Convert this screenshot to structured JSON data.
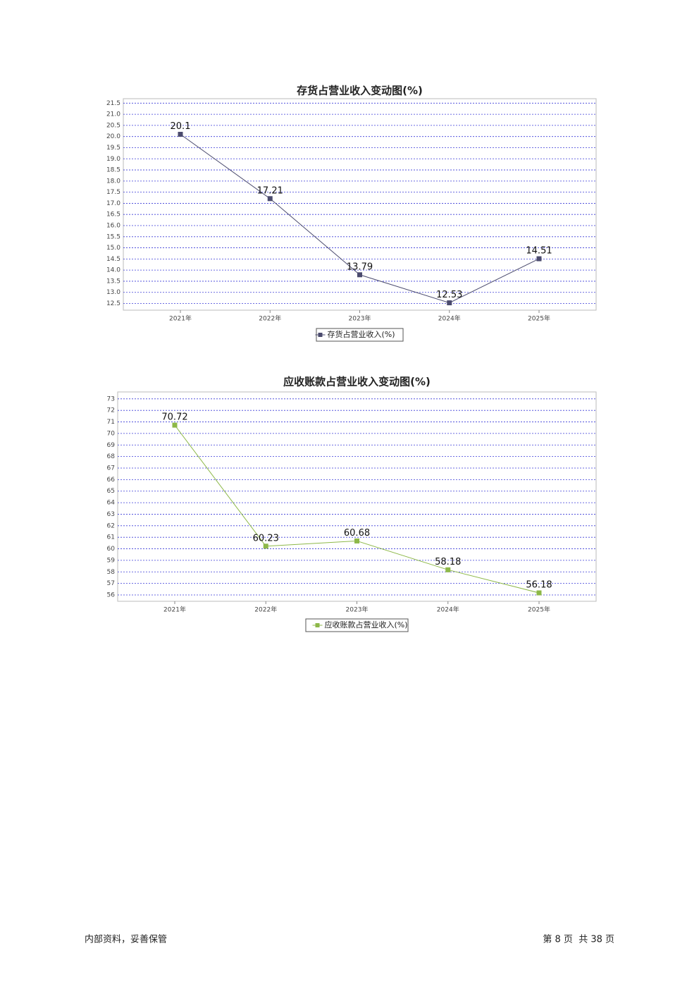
{
  "chart_data": [
    {
      "type": "line",
      "title": "存货占营业收入变动图(%)",
      "categories": [
        "2021年",
        "2022年",
        "2023年",
        "2024年",
        "2025年"
      ],
      "series": [
        {
          "name": "存货占营业收入(%)",
          "color": "#4b4b6e",
          "values": [
            20.1,
            17.21,
            13.79,
            12.53,
            14.51
          ]
        }
      ],
      "ylim": [
        12.2,
        21.7
      ],
      "yticks": [
        12.5,
        {
          "value": 13,
          "label": "13.0"
        },
        13.5,
        {
          "value": 14,
          "label": "14.0"
        },
        14.5,
        {
          "value": 15,
          "label": "15.0"
        },
        15.5,
        {
          "value": 16,
          "label": "16.0"
        },
        16.5,
        {
          "value": 17,
          "label": "17.0"
        },
        17.5,
        {
          "value": 18,
          "label": "18.0"
        },
        18.5,
        {
          "value": 19,
          "label": "19.0"
        },
        19.5,
        {
          "value": 20,
          "label": "20.0"
        },
        20.5,
        {
          "value": 21,
          "label": "21.0"
        },
        21.5
      ],
      "grid": true
    },
    {
      "type": "line",
      "title": "应收账款占营业收入变动图(%)",
      "categories": [
        "2021年",
        "2022年",
        "2023年",
        "2024年",
        "2025年"
      ],
      "series": [
        {
          "name": "应收账款占营业收入(%)",
          "color": "#8db848",
          "values": [
            70.72,
            60.23,
            60.68,
            58.18,
            56.18
          ]
        }
      ],
      "ylim": [
        55.45,
        73.6
      ],
      "yticks": [
        56,
        57,
        58,
        59,
        60,
        61,
        62,
        63,
        64,
        65,
        66,
        67,
        68,
        69,
        70,
        71,
        72,
        73
      ],
      "grid": true
    }
  ],
  "footer": {
    "left": "内部资料，妥善保管",
    "right": "第 8 页  共 38 页"
  }
}
